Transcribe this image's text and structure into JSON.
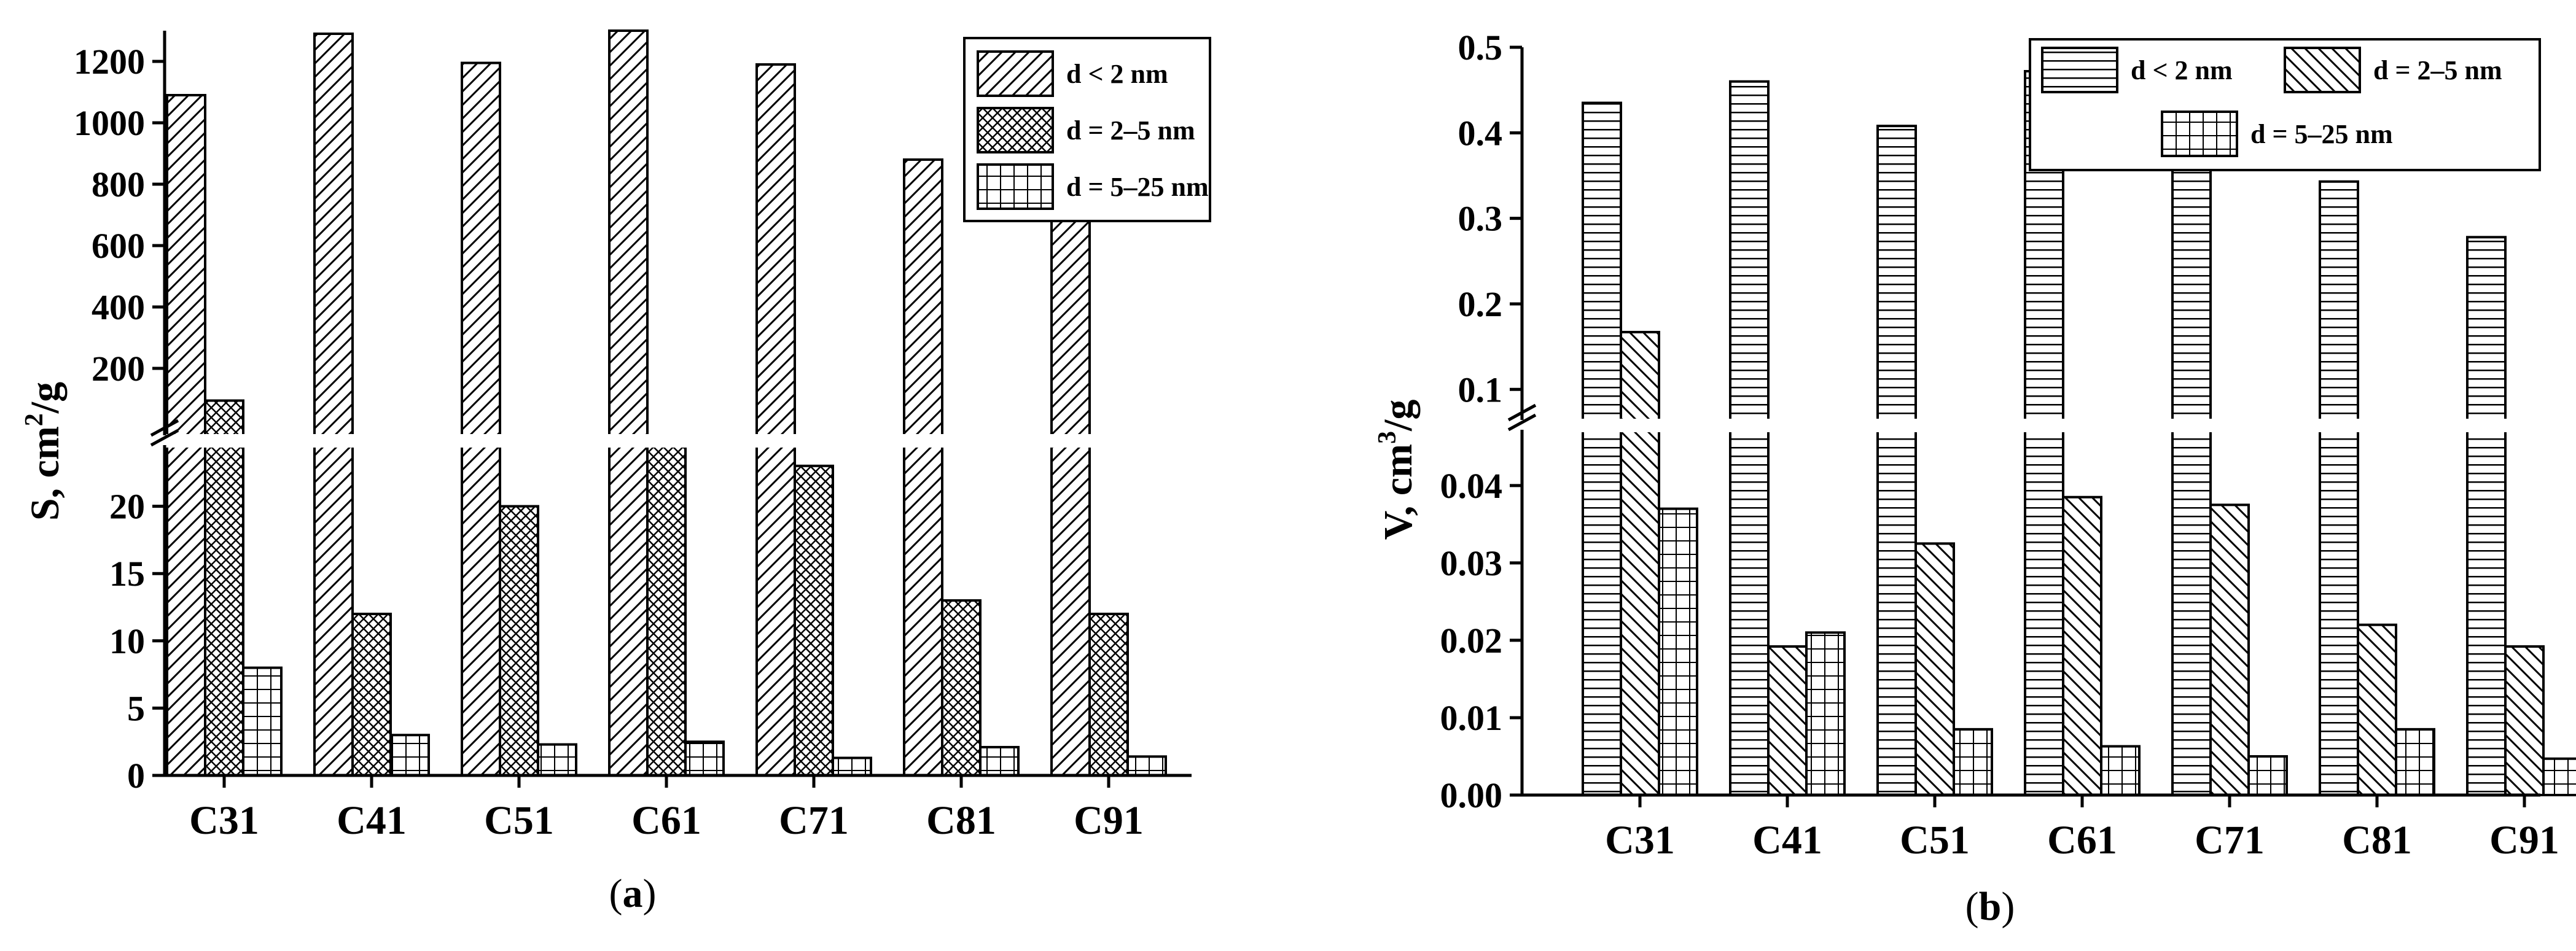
{
  "chart_data": [
    {
      "type": "bar",
      "panel_label": "a",
      "ylabel": "S, cm²/g",
      "ylabel_main": "S, cm",
      "ylabel_sup": "2",
      "ylabel_tail": "/g",
      "axis_break": true,
      "lower_range": [
        0,
        25
      ],
      "upper_range": [
        0,
        1300
      ],
      "lower_ticks": [
        "0",
        "5",
        "10",
        "15",
        "20"
      ],
      "upper_ticks": [
        "200",
        "400",
        "600",
        "800",
        "1000",
        "1200"
      ],
      "categories": [
        "C31",
        "C41",
        "C51",
        "C61",
        "C71",
        "C81",
        "C91"
      ],
      "series": [
        {
          "name": "d < 2 nm",
          "pattern": "diag",
          "values": [
            1090,
            1290,
            1195,
            1315,
            1190,
            880,
            720
          ]
        },
        {
          "name": "d = 2–5 nm",
          "pattern": "cross",
          "values": [
            95,
            12,
            20,
            25,
            23,
            13,
            12
          ]
        },
        {
          "name": "d = 5–25 nm",
          "pattern": "grid",
          "values": [
            8,
            3,
            2.3,
            2.5,
            1.3,
            2.1,
            1.4
          ]
        }
      ],
      "legend_position": "top-right"
    },
    {
      "type": "bar",
      "panel_label": "b",
      "ylabel": "V, cm³/g",
      "ylabel_main": "V, cm",
      "ylabel_sup": "3",
      "ylabel_tail": "/g",
      "axis_break": true,
      "lower_range": [
        0,
        0.048
      ],
      "upper_range": [
        0.06,
        0.5
      ],
      "lower_ticks": [
        "0.00",
        "0.01",
        "0.02",
        "0.03",
        "0.04"
      ],
      "upper_ticks": [
        "0.1",
        "0.2",
        "0.3",
        "0.4",
        "0.5"
      ],
      "categories": [
        "C31",
        "C41",
        "C51",
        "C61",
        "C71",
        "C81",
        "C91"
      ],
      "series": [
        {
          "name": "d < 2 nm",
          "pattern": "hlines",
          "values": [
            0.435,
            0.46,
            0.408,
            0.472,
            0.36,
            0.343,
            0.278
          ]
        },
        {
          "name": "d = 2–5 nm",
          "pattern": "rdiag",
          "values": [
            0.167,
            0.0192,
            0.0325,
            0.0385,
            0.0375,
            0.022,
            0.0192
          ]
        },
        {
          "name": "d = 5–25 nm",
          "pattern": "grid",
          "values": [
            0.037,
            0.021,
            0.0085,
            0.0063,
            0.005,
            0.0085,
            0.0047
          ]
        }
      ],
      "legend_position": "top-right"
    }
  ]
}
